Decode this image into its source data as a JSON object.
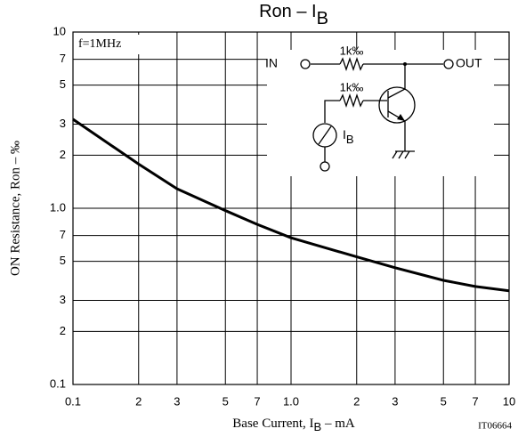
{
  "chart_data": {
    "type": "line",
    "title": {
      "main": "Ron – I",
      "sub": "B"
    },
    "x_label": {
      "main": "Base Current, I",
      "sub": "B",
      "unit": " – mA"
    },
    "y_label": "ON Resistance, Ron – ‰",
    "annotations": {
      "condition": "f=1MHz",
      "code": "IT06664"
    },
    "circuit": {
      "in": "IN",
      "out": "OUT",
      "r1": "1k‰",
      "r2": "1k‰",
      "meter": "I",
      "meter_sub": "B"
    },
    "log_x": true,
    "log_y": true,
    "grid": true,
    "x": [
      0.1,
      0.2,
      0.3,
      0.5,
      0.7,
      1.0,
      2,
      3,
      5,
      7,
      10
    ],
    "series": [
      {
        "name": "Ron",
        "color": "#000000",
        "values": [
          3.2,
          1.78,
          1.29,
          0.97,
          0.81,
          0.68,
          0.53,
          0.46,
          0.39,
          0.36,
          0.34
        ]
      }
    ],
    "xlim": [
      0.1,
      10
    ],
    "xticks": [
      0.1,
      {
        "value": 0.2,
        "label": "2"
      },
      {
        "value": 0.3,
        "label": "3"
      },
      {
        "value": 0.5,
        "label": "5"
      },
      {
        "value": 0.7,
        "label": "7"
      },
      {
        "value": 1,
        "label": "1.0"
      },
      2,
      3,
      5,
      7,
      10
    ],
    "ylim": [
      0.1,
      10
    ],
    "yticks": [
      0.1,
      {
        "value": 0.2,
        "label": "2"
      },
      {
        "value": 0.3,
        "label": "3"
      },
      {
        "value": 0.5,
        "label": "5"
      },
      {
        "value": 0.7,
        "label": "7"
      },
      {
        "value": 1,
        "label": "1.0"
      },
      2,
      3,
      5,
      7,
      10
    ]
  }
}
